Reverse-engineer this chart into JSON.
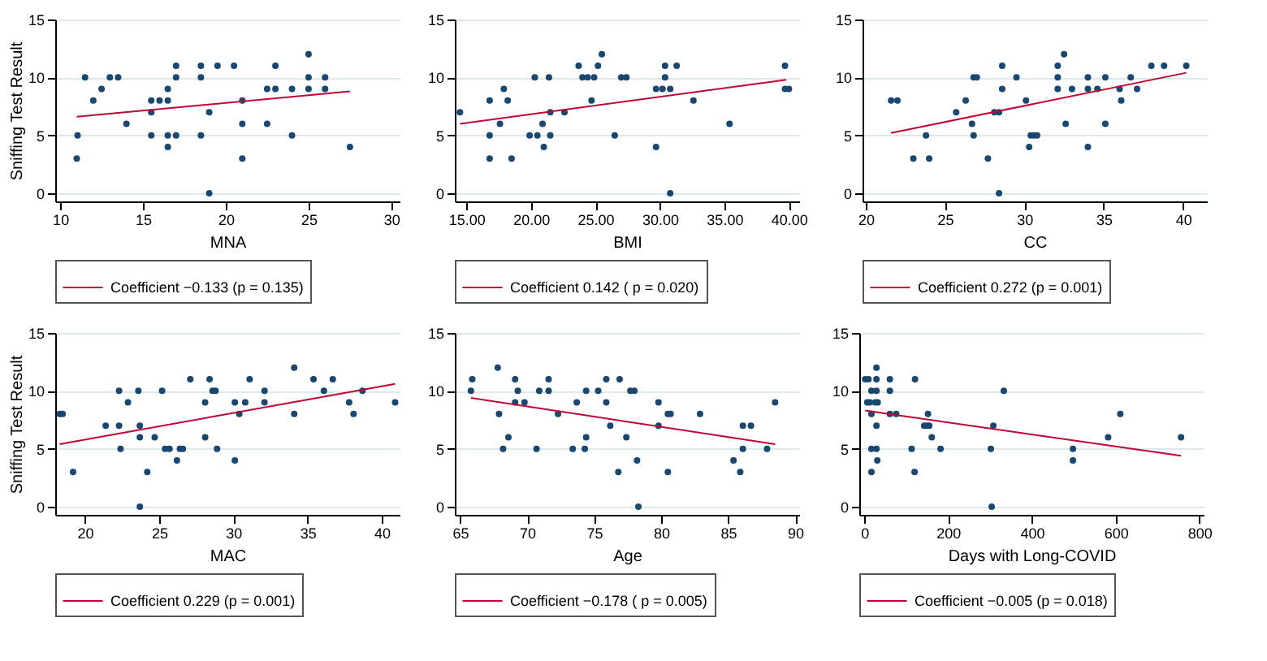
{
  "chart_data": [
    {
      "type": "scatter",
      "xlabel": "MNA",
      "ylabel": "Sniffing Test Result",
      "xlim": [
        9.7,
        30.5
      ],
      "xticks": [
        10,
        15,
        20,
        25,
        30
      ],
      "ylim": [
        -0.7,
        15
      ],
      "yticks": [
        0,
        5,
        10,
        15
      ],
      "grid": "y",
      "legend": "bottom",
      "series": [
        {
          "marker": "circle",
          "color": "#1a476f",
          "x": [
            11.05,
            11,
            11.5,
            12,
            12.5,
            13,
            13.5,
            14,
            15.5,
            15.5,
            15.5,
            16,
            16.5,
            16.5,
            16.5,
            16.5,
            17,
            17,
            17,
            18.5,
            18.5,
            18.5,
            19,
            19,
            19.5,
            20.5,
            21,
            21,
            21,
            22.5,
            22.5,
            23,
            23,
            24,
            24,
            25,
            25,
            25,
            26,
            26,
            27.5
          ],
          "values": [
            5,
            3,
            10,
            8,
            9,
            10,
            10,
            6,
            8,
            7,
            5,
            8,
            9,
            8,
            5,
            4,
            11,
            10,
            5,
            11,
            10,
            5,
            7,
            0,
            11,
            11,
            8,
            6,
            3,
            9,
            6,
            11,
            9,
            9,
            5,
            12,
            10,
            9,
            10,
            9,
            4
          ]
        },
        {
          "type": "line",
          "name": "Coefficient −0.133 (p = 0.135)",
          "color": "#c10534",
          "x": [
            11,
            27.5
          ],
          "values": [
            6.6,
            8.8
          ]
        }
      ]
    },
    {
      "type": "scatter",
      "xlabel": "BMI",
      "xlim": [
        14.1,
        40.8
      ],
      "xticks": [
        {
          "value": 15,
          "label": "15.00"
        },
        {
          "value": 20,
          "label": "20.00"
        },
        {
          "value": 25,
          "label": "25.00"
        },
        {
          "value": 30,
          "label": "30.00"
        },
        {
          "value": 35,
          "label": "35.00"
        },
        {
          "value": 40,
          "label": "40.00"
        }
      ],
      "ylim": [
        -0.7,
        15
      ],
      "yticks": [
        0,
        5,
        10,
        15
      ],
      "grid": "y",
      "legend": "bottom",
      "series": [
        {
          "marker": "circle",
          "color": "#1a476f",
          "x": [
            14.5,
            16.8,
            16.8,
            16.8,
            17.6,
            17.9,
            18.2,
            18.5,
            19.9,
            20.3,
            20.5,
            20.9,
            21.0,
            21.4,
            21.5,
            21.5,
            22.6,
            23.7,
            24.0,
            24.4,
            24.7,
            24.9,
            25.2,
            25.5,
            26.5,
            27.0,
            27.4,
            29.7,
            29.7,
            30.2,
            30.4,
            30.4,
            30.8,
            30.8,
            31.3,
            32.6,
            35.4,
            39.7,
            39.7,
            40.0
          ],
          "values": [
            7,
            8,
            5,
            3,
            6,
            9,
            8,
            3,
            5,
            10,
            5,
            6,
            4,
            10,
            7,
            5,
            7,
            11,
            10,
            10,
            8,
            10,
            11,
            12,
            5,
            10,
            10,
            9,
            4,
            9,
            10,
            11,
            9,
            0,
            11,
            8,
            6,
            11,
            9,
            9
          ]
        },
        {
          "type": "line",
          "name": "Coefficient 0.142 ( p = 0.020)",
          "color": "#c10534",
          "x": [
            14.5,
            39.8
          ],
          "values": [
            6.0,
            9.8
          ]
        }
      ]
    },
    {
      "type": "scatter",
      "xlabel": "CC",
      "xlim": [
        19.8,
        41.5
      ],
      "xticks": [
        20,
        25,
        30,
        35,
        40
      ],
      "ylim": [
        -0.7,
        15
      ],
      "yticks": [
        0,
        5,
        10,
        15
      ],
      "grid": "y",
      "legend": "bottom",
      "series": [
        {
          "marker": "circle",
          "color": "#1a476f",
          "x": [
            21.6,
            22.0,
            23.0,
            23.8,
            24.0,
            25.7,
            26.3,
            26.7,
            26.8,
            26.8,
            27.0,
            27.7,
            28.1,
            28.4,
            28.4,
            28.6,
            28.6,
            29.5,
            30.1,
            30.3,
            30.4,
            30.6,
            30.8,
            32.1,
            32.1,
            32.1,
            32.5,
            32.6,
            33.0,
            34.0,
            34.0,
            34.0,
            34.6,
            35.1,
            35.1,
            36.0,
            36.1,
            36.7,
            37.1,
            38.0,
            38.8,
            40.2
          ],
          "values": [
            8,
            8,
            3,
            5,
            3,
            7,
            8,
            6,
            5,
            10,
            10,
            3,
            7,
            7,
            0,
            11,
            9,
            10,
            8,
            4,
            5,
            5,
            5,
            11,
            10,
            9,
            12,
            6,
            9,
            10,
            9,
            4,
            9,
            10,
            6,
            9,
            8,
            10,
            9,
            11,
            11,
            11
          ]
        },
        {
          "type": "line",
          "name": "Coefficient 0.272 (p = 0.001)",
          "color": "#c10534",
          "x": [
            21.6,
            40.2
          ],
          "values": [
            5.2,
            10.4
          ]
        }
      ]
    },
    {
      "type": "scatter",
      "xlabel": "MAC",
      "ylabel": "Sniffing Test Result",
      "xlim": [
        18,
        41.2
      ],
      "xticks": [
        20,
        25,
        30,
        35,
        40
      ],
      "ylim": [
        -0.7,
        15
      ],
      "yticks": [
        0,
        5,
        10,
        15
      ],
      "grid": "y",
      "legend": "bottom",
      "series": [
        {
          "marker": "circle",
          "color": "#1a476f",
          "x": [
            18.3,
            18.5,
            19.2,
            21.4,
            22.3,
            22.3,
            22.4,
            22.9,
            23.6,
            23.7,
            23.7,
            23.7,
            24.2,
            24.7,
            25.2,
            25.4,
            25.7,
            26.2,
            26.4,
            26.6,
            27.1,
            28.1,
            28.1,
            28.4,
            28.6,
            28.8,
            28.9,
            30.1,
            30.1,
            30.4,
            30.8,
            31.1,
            32.1,
            32.1,
            34.1,
            34.1,
            35.4,
            36.1,
            36.7,
            37.8,
            38.1,
            38.7,
            40.9
          ],
          "values": [
            8,
            8,
            3,
            7,
            10,
            7,
            5,
            9,
            10,
            7,
            6,
            0,
            3,
            6,
            10,
            5,
            5,
            4,
            5,
            5,
            11,
            9,
            6,
            11,
            10,
            10,
            5,
            9,
            4,
            8,
            9,
            11,
            10,
            9,
            12,
            8,
            11,
            10,
            11,
            9,
            8,
            10,
            9
          ]
        },
        {
          "type": "line",
          "name": "Coefficient 0.229 (p = 0.001)",
          "color": "#c10534",
          "x": [
            18.3,
            40.9
          ],
          "values": [
            5.4,
            10.6
          ]
        }
      ]
    },
    {
      "type": "scatter",
      "xlabel": "Age",
      "xlim": [
        64.6,
        90.3
      ],
      "xticks": [
        65,
        70,
        75,
        80,
        85,
        90
      ],
      "ylim": [
        -0.7,
        15
      ],
      "yticks": [
        0,
        5,
        10,
        15
      ],
      "grid": "y",
      "legend": "bottom",
      "series": [
        {
          "marker": "circle",
          "color": "#1a476f",
          "x": [
            65.8,
            65.9,
            67.8,
            67.9,
            68.2,
            68.6,
            69.1,
            69.1,
            69.3,
            69.8,
            70.7,
            70.9,
            71.6,
            71.6,
            72.3,
            73.4,
            73.7,
            74.3,
            74.4,
            74.4,
            75.3,
            75.9,
            75.9,
            76.2,
            76.8,
            76.9,
            77.4,
            77.7,
            78.0,
            78.2,
            78.3,
            79.8,
            79.8,
            80.5,
            80.5,
            80.7,
            82.9,
            85.4,
            85.9,
            86.1,
            86.1,
            86.7,
            87.9,
            88.5
          ],
          "values": [
            10,
            11,
            12,
            8,
            5,
            6,
            11,
            9,
            10,
            9,
            5,
            10,
            11,
            10,
            8,
            5,
            9,
            5,
            10,
            6,
            10,
            11,
            9,
            7,
            3,
            11,
            6,
            10,
            10,
            4,
            0,
            9,
            7,
            3,
            8,
            8,
            8,
            4,
            3,
            7,
            5,
            7,
            5,
            9
          ]
        },
        {
          "type": "line",
          "name": "Coefficient −0.178 ( p = 0.005)",
          "color": "#c10534",
          "x": [
            65.8,
            88.5
          ],
          "values": [
            9.4,
            5.4
          ]
        }
      ]
    },
    {
      "type": "scatter",
      "xlabel": "Days with Long-COVID",
      "xlim": [
        -12,
        810
      ],
      "xticks": [
        0,
        200,
        400,
        600,
        800
      ],
      "ylim": [
        -0.7,
        15
      ],
      "yticks": [
        0,
        5,
        10,
        15
      ],
      "grid": "y",
      "legend": "bottom",
      "series": [
        {
          "marker": "circle",
          "color": "#1a476f",
          "x": [
            2,
            10,
            7,
            13,
            17,
            17,
            17,
            17,
            26,
            29,
            29,
            29,
            29,
            29,
            31,
            32,
            61,
            61,
            61,
            76,
            113,
            120,
            121,
            143,
            150,
            152,
            155,
            161,
            182,
            302,
            304,
            308,
            333,
            498,
            498,
            582,
            611,
            756
          ],
          "values": [
            11,
            11,
            9,
            9,
            5,
            3,
            8,
            10,
            9,
            10,
            7,
            11,
            12,
            5,
            4,
            9,
            11,
            10,
            8,
            8,
            5,
            3,
            11,
            7,
            7,
            8,
            7,
            6,
            5,
            5,
            0,
            7,
            10,
            5,
            4,
            6,
            8,
            6
          ]
        },
        {
          "type": "line",
          "name": "Coefficient −0.005 (p = 0.018)",
          "color": "#c10534",
          "x": [
            2,
            756
          ],
          "values": [
            8.3,
            4.4
          ]
        }
      ]
    }
  ]
}
